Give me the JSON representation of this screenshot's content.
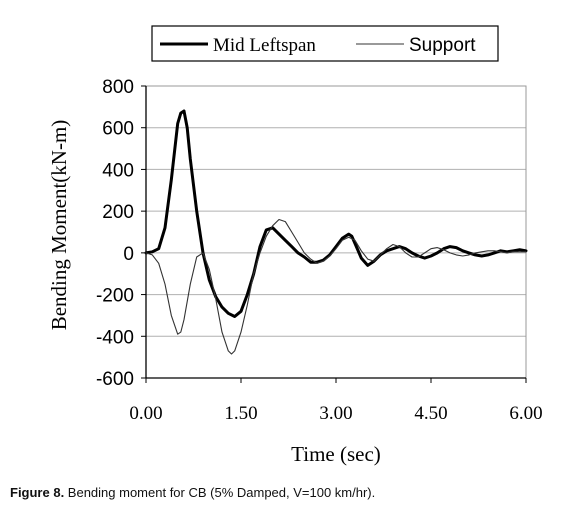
{
  "caption": {
    "label": "Figure 8.",
    "text": " Bending moment for CB (5% Damped, V=100 km/hr)."
  },
  "chart_data": {
    "type": "line",
    "title": "",
    "xlabel": "Time (sec)",
    "ylabel": "Bending Moment(kN-m)",
    "xlim": [
      0,
      6
    ],
    "ylim": [
      -600,
      800
    ],
    "xticks": [
      0,
      1.5,
      3,
      4.5,
      6
    ],
    "xtick_labels": [
      "0.00",
      "1.50",
      "3.00",
      "4.50",
      "6.00"
    ],
    "yticks": [
      -600,
      -400,
      -200,
      0,
      200,
      400,
      600,
      800
    ],
    "ytick_labels": [
      "-600",
      "-400",
      "-200",
      "0",
      "200",
      "400",
      "600",
      "800"
    ],
    "grid": "horizontal",
    "legend_position": "top",
    "series": [
      {
        "name": "Mid Leftspan",
        "color": "#000000",
        "style": "thick",
        "x": [
          0,
          0.1,
          0.2,
          0.3,
          0.4,
          0.5,
          0.55,
          0.6,
          0.65,
          0.7,
          0.8,
          0.9,
          1.0,
          1.1,
          1.2,
          1.3,
          1.4,
          1.5,
          1.6,
          1.7,
          1.8,
          1.9,
          2.0,
          2.1,
          2.2,
          2.3,
          2.4,
          2.5,
          2.6,
          2.7,
          2.8,
          2.9,
          3.0,
          3.1,
          3.2,
          3.25,
          3.3,
          3.4,
          3.5,
          3.6,
          3.7,
          3.8,
          3.9,
          4.0,
          4.1,
          4.2,
          4.3,
          4.4,
          4.5,
          4.6,
          4.7,
          4.8,
          4.9,
          5.0,
          5.1,
          5.2,
          5.3,
          5.4,
          5.5,
          5.6,
          5.7,
          5.8,
          5.9,
          6.0
        ],
        "y": [
          0,
          5,
          20,
          120,
          350,
          620,
          670,
          680,
          600,
          450,
          200,
          0,
          -130,
          -210,
          -260,
          -290,
          -305,
          -280,
          -200,
          -100,
          30,
          110,
          120,
          90,
          60,
          30,
          0,
          -20,
          -45,
          -45,
          -35,
          -10,
          30,
          70,
          90,
          80,
          45,
          -25,
          -60,
          -40,
          -10,
          10,
          20,
          30,
          20,
          0,
          -15,
          -25,
          -15,
          0,
          20,
          30,
          25,
          10,
          0,
          -10,
          -15,
          -10,
          0,
          10,
          5,
          10,
          15,
          10
        ]
      },
      {
        "name": "Support",
        "color": "#333333",
        "style": "thin",
        "x": [
          0,
          0.1,
          0.2,
          0.3,
          0.4,
          0.5,
          0.55,
          0.6,
          0.7,
          0.8,
          0.9,
          1.0,
          1.1,
          1.2,
          1.3,
          1.35,
          1.4,
          1.5,
          1.6,
          1.7,
          1.8,
          1.9,
          2.0,
          2.1,
          2.2,
          2.3,
          2.4,
          2.5,
          2.6,
          2.7,
          2.8,
          2.9,
          3.0,
          3.1,
          3.2,
          3.3,
          3.4,
          3.5,
          3.6,
          3.7,
          3.8,
          3.9,
          4.0,
          4.1,
          4.2,
          4.3,
          4.4,
          4.5,
          4.6,
          4.7,
          4.8,
          4.9,
          5.0,
          5.1,
          5.2,
          5.3,
          5.4,
          5.5,
          5.6,
          5.7,
          5.8,
          5.9,
          6.0
        ],
        "y": [
          0,
          -10,
          -50,
          -150,
          -300,
          -390,
          -380,
          -320,
          -150,
          -20,
          0,
          -80,
          -220,
          -380,
          -470,
          -485,
          -470,
          -380,
          -250,
          -100,
          0,
          80,
          130,
          160,
          150,
          100,
          50,
          0,
          -30,
          -50,
          -40,
          -15,
          20,
          60,
          75,
          60,
          10,
          -30,
          -40,
          -10,
          20,
          40,
          30,
          0,
          -20,
          -20,
          0,
          20,
          25,
          15,
          0,
          -10,
          -15,
          -10,
          0,
          5,
          10,
          10,
          5,
          0,
          5,
          5,
          5
        ]
      }
    ]
  }
}
